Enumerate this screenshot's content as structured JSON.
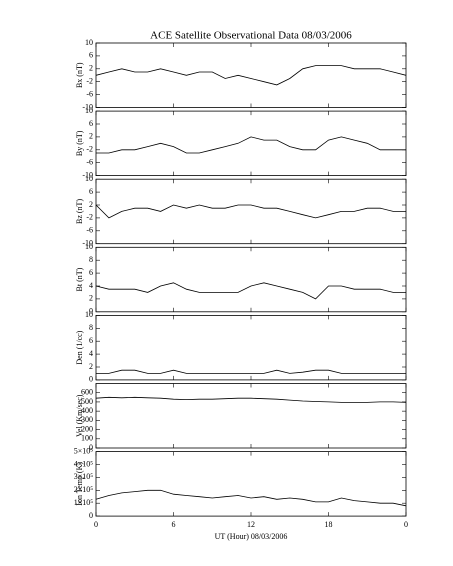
{
  "title": "ACE Satellite Observational Data   08/03/2006",
  "chart_data": [
    {
      "type": "line",
      "ylabel": "Bx (nT)",
      "xlim": [
        0,
        24
      ],
      "ylim": [
        -10,
        10
      ],
      "yticks": [
        -10,
        -6,
        -2,
        2,
        6,
        10
      ],
      "color": "#000000",
      "x": [
        0,
        1,
        2,
        3,
        4,
        5,
        6,
        7,
        8,
        9,
        10,
        11,
        12,
        13,
        14,
        15,
        16,
        17,
        18,
        19,
        20,
        21,
        22,
        23,
        24
      ],
      "values": [
        0,
        1,
        2,
        1,
        1,
        2,
        1,
        0,
        1,
        1,
        -1,
        0,
        -1,
        -2,
        -3,
        -1,
        2,
        3,
        3,
        3,
        2,
        2,
        2,
        1,
        0
      ]
    },
    {
      "type": "line",
      "ylabel": "By (nT)",
      "xlim": [
        0,
        24
      ],
      "ylim": [
        -10,
        10
      ],
      "yticks": [
        -10,
        -6,
        -2,
        2,
        6,
        10
      ],
      "color": "#000000",
      "x": [
        0,
        1,
        2,
        3,
        4,
        5,
        6,
        7,
        8,
        9,
        10,
        11,
        12,
        13,
        14,
        15,
        16,
        17,
        18,
        19,
        20,
        21,
        22,
        23,
        24
      ],
      "values": [
        -3,
        -3,
        -2,
        -2,
        -1,
        0,
        -1,
        -3,
        -3,
        -2,
        -1,
        0,
        2,
        1,
        1,
        -1,
        -2,
        -2,
        1,
        2,
        1,
        0,
        -2,
        -2,
        -2
      ]
    },
    {
      "type": "line",
      "ylabel": "Bz (nT)",
      "xlim": [
        0,
        24
      ],
      "ylim": [
        -10,
        10
      ],
      "yticks": [
        -10,
        -6,
        -2,
        2,
        6,
        10
      ],
      "color": "#000000",
      "x": [
        0,
        1,
        2,
        3,
        4,
        5,
        6,
        7,
        8,
        9,
        10,
        11,
        12,
        13,
        14,
        15,
        16,
        17,
        18,
        19,
        20,
        21,
        22,
        23,
        24
      ],
      "values": [
        2,
        -2,
        0,
        1,
        1,
        0,
        2,
        1,
        2,
        1,
        1,
        2,
        2,
        1,
        1,
        0,
        -1,
        -2,
        -1,
        0,
        0,
        1,
        1,
        0,
        0
      ]
    },
    {
      "type": "line",
      "ylabel": "Bt (nT)",
      "xlim": [
        0,
        24
      ],
      "ylim": [
        0,
        10
      ],
      "yticks": [
        0,
        2,
        4,
        6,
        8,
        10
      ],
      "color": "#000000",
      "x": [
        0,
        1,
        2,
        3,
        4,
        5,
        6,
        7,
        8,
        9,
        10,
        11,
        12,
        13,
        14,
        15,
        16,
        17,
        18,
        19,
        20,
        21,
        22,
        23,
        24
      ],
      "values": [
        4,
        3.5,
        3.5,
        3.5,
        3,
        4,
        4.5,
        3.5,
        3,
        3,
        3,
        3,
        4,
        4.5,
        4,
        3.5,
        3,
        2,
        4,
        4,
        3.5,
        3.5,
        3.5,
        3,
        3
      ]
    },
    {
      "type": "line",
      "ylabel": "Den (1/cc)",
      "xlim": [
        0,
        24
      ],
      "ylim": [
        0,
        10
      ],
      "yticks": [
        0,
        2,
        4,
        6,
        8,
        10
      ],
      "color": "#000000",
      "x": [
        0,
        1,
        2,
        3,
        4,
        5,
        6,
        7,
        8,
        9,
        10,
        11,
        12,
        13,
        14,
        15,
        16,
        17,
        18,
        19,
        20,
        21,
        22,
        23,
        24
      ],
      "values": [
        1,
        1,
        1.5,
        1.5,
        1,
        1,
        1.5,
        1,
        1,
        1,
        1,
        1,
        1,
        1,
        1.5,
        1,
        1.2,
        1.5,
        1.5,
        1,
        1,
        1,
        1,
        1,
        1
      ]
    },
    {
      "type": "line",
      "ylabel": "Vel (Km/sec)",
      "xlim": [
        0,
        24
      ],
      "ylim": [
        0,
        700
      ],
      "yticks": [
        0,
        100,
        200,
        300,
        400,
        500,
        600
      ],
      "color": "#000000",
      "x": [
        0,
        1,
        2,
        3,
        4,
        5,
        6,
        7,
        8,
        9,
        10,
        11,
        12,
        13,
        14,
        15,
        16,
        17,
        18,
        19,
        20,
        21,
        22,
        23,
        24
      ],
      "values": [
        540,
        550,
        545,
        550,
        545,
        540,
        530,
        525,
        530,
        530,
        535,
        540,
        540,
        535,
        530,
        520,
        510,
        505,
        500,
        495,
        495,
        495,
        500,
        500,
        495
      ]
    },
    {
      "type": "line",
      "ylabel": "Ion Temp (K)",
      "xlim": [
        0,
        24
      ],
      "ylim": [
        0,
        500000
      ],
      "yticks": [
        0,
        {
          "value": 100000,
          "label": "1×10⁵"
        },
        {
          "value": 200000,
          "label": "2×10⁵"
        },
        {
          "value": 300000,
          "label": "3×10⁵"
        },
        {
          "value": 400000,
          "label": "4×10⁵"
        },
        {
          "value": 500000,
          "label": "5×10⁵"
        }
      ],
      "color": "#000000",
      "xlabel": "UT (Hour)   08/03/2006",
      "xticks": [
        0,
        6,
        12,
        18,
        {
          "value": 24,
          "label": "0"
        }
      ],
      "x": [
        0,
        1,
        2,
        3,
        4,
        5,
        6,
        7,
        8,
        9,
        10,
        11,
        12,
        13,
        14,
        15,
        16,
        17,
        18,
        19,
        20,
        21,
        22,
        23,
        24
      ],
      "values": [
        130000,
        160000,
        180000,
        190000,
        200000,
        200000,
        170000,
        160000,
        150000,
        140000,
        150000,
        160000,
        140000,
        150000,
        130000,
        140000,
        130000,
        110000,
        110000,
        140000,
        120000,
        110000,
        100000,
        100000,
        80000
      ]
    }
  ]
}
